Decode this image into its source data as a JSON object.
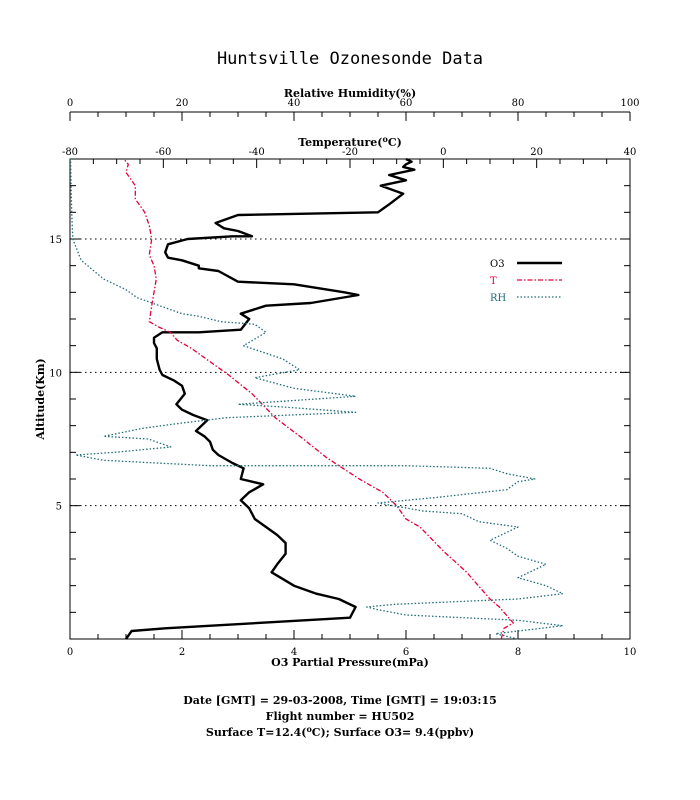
{
  "chart_data": {
    "type": "line",
    "title": "Huntsville Ozonesonde Data",
    "ylabel": "Altitude(Km)",
    "ylim": [
      0,
      18
    ],
    "yticks": [
      5,
      10,
      15
    ],
    "axes": {
      "o3": {
        "label": "O3 Partial Pressure(mPa)",
        "lim": [
          0,
          10
        ],
        "ticks": [
          0,
          2,
          4,
          6,
          8,
          10
        ]
      },
      "rh": {
        "label": "Relative Humidity(%)",
        "lim": [
          0,
          100
        ],
        "ticks": [
          0,
          20,
          40,
          60,
          80,
          100
        ]
      },
      "temp": {
        "label_pre": "Temperature(",
        "label_sup": "o",
        "label_post": "C)",
        "lim": [
          -80,
          40
        ],
        "ticks": [
          -80,
          -60,
          -40,
          -20,
          0,
          20,
          40
        ]
      }
    },
    "legend": {
      "placement": "right-middle",
      "entries": [
        "O3",
        "T",
        "RH"
      ]
    },
    "grid": "dotted at 5, 10, 15 km",
    "series": [
      {
        "name": "O3",
        "axis": "o3",
        "color": "#000000",
        "x": [
          1.0,
          1.1,
          1.7,
          5.0,
          5.1,
          4.8,
          4.4,
          4.0,
          3.6,
          3.7,
          3.85,
          3.85,
          3.7,
          3.5,
          3.3,
          3.2,
          3.05,
          3.2,
          3.45,
          3.05,
          3.1,
          2.9,
          2.65,
          2.55,
          2.5,
          2.4,
          2.25,
          2.45,
          2.2,
          2.0,
          1.9,
          2.05,
          2.0,
          1.85,
          1.65,
          1.6,
          1.55,
          1.55,
          1.5,
          1.5,
          1.65,
          2.3,
          3.05,
          3.2,
          3.05,
          3.5,
          4.3,
          5.15,
          4.9,
          4.0,
          3.0,
          2.65,
          2.3,
          2.3,
          2.0,
          1.75,
          1.7,
          1.75,
          2.1,
          2.9,
          3.25,
          3.0,
          2.75,
          2.6,
          3.0,
          5.5,
          5.7,
          5.95,
          5.55,
          6.0,
          5.7,
          6.15,
          5.95,
          6.0,
          6.1,
          6.0
        ],
        "y": [
          0.0,
          0.3,
          0.4,
          0.8,
          1.2,
          1.5,
          1.7,
          2.0,
          2.5,
          2.8,
          3.2,
          3.6,
          3.9,
          4.2,
          4.5,
          4.9,
          5.2,
          5.5,
          5.8,
          6.0,
          6.4,
          6.6,
          6.9,
          7.1,
          7.4,
          7.6,
          7.8,
          8.2,
          8.4,
          8.6,
          8.8,
          9.2,
          9.5,
          9.7,
          9.9,
          10.1,
          10.5,
          10.9,
          11.1,
          11.3,
          11.5,
          11.5,
          11.6,
          12.0,
          12.2,
          12.5,
          12.6,
          12.9,
          13.0,
          13.3,
          13.4,
          13.8,
          13.9,
          14.0,
          14.2,
          14.3,
          14.5,
          14.8,
          15.0,
          15.1,
          15.1,
          15.3,
          15.4,
          15.6,
          15.9,
          16.0,
          16.3,
          16.7,
          17.0,
          17.2,
          17.4,
          17.6,
          17.7,
          17.8,
          17.9,
          18.0
        ]
      },
      {
        "name": "T",
        "axis": "temp",
        "color": "#e4003a",
        "x": [
          12.4,
          13.0,
          15.0,
          13.5,
          12.0,
          10.0,
          5.0,
          0.0,
          -5.0,
          -8.0,
          -10.0,
          -13.0,
          -18.0,
          -25.0,
          -30.0,
          -36.0,
          -41.0,
          -46.0,
          -50.0,
          -54.0,
          -57.0,
          -58.5,
          -61.0,
          -63.0,
          -62.5,
          -62.0,
          -61.5,
          -62.0,
          -63.0,
          -62.5,
          -63.0,
          -64.0,
          -66.0,
          -66.0,
          -68.0,
          -67.5,
          -68.5
        ],
        "y": [
          0.0,
          0.4,
          0.6,
          0.9,
          1.2,
          1.5,
          2.5,
          3.3,
          4.2,
          4.5,
          5.0,
          5.5,
          6.0,
          6.8,
          7.5,
          8.3,
          9.2,
          9.9,
          10.4,
          10.9,
          11.2,
          11.5,
          11.7,
          11.9,
          12.5,
          13.0,
          13.5,
          14.0,
          14.4,
          15.0,
          15.5,
          16.0,
          16.5,
          17.0,
          17.5,
          17.8,
          18.0
        ]
      },
      {
        "name": "RH",
        "axis": "rh",
        "color": "#1f6d78",
        "x": [
          80.0,
          76.0,
          88.0,
          80.0,
          60.0,
          55.0,
          53.0,
          58.0,
          80.0,
          88.0,
          85.0,
          80.0,
          85.0,
          80.0,
          78.0,
          75.0,
          80.0,
          73.0,
          70.0,
          63.0,
          55.0,
          65.0,
          78.0,
          80.0,
          83.0,
          78.0,
          75.0,
          60.0,
          45.0,
          25.0,
          6.0,
          1.0,
          8.0,
          18.0,
          14.0,
          6.0,
          13.0,
          20.0,
          28.0,
          51.0,
          38.0,
          30.0,
          51.0,
          40.0,
          33.0,
          41.0,
          38.0,
          31.0,
          35.0,
          33.0,
          27.0,
          25.0,
          23.0,
          20.0,
          16.0,
          12.0,
          10.0,
          6.0,
          2.0,
          0.5,
          0.3,
          0.2,
          0.1
        ],
        "y": [
          0.0,
          0.2,
          0.5,
          0.7,
          0.9,
          1.1,
          1.2,
          1.3,
          1.5,
          1.7,
          2.0,
          2.3,
          2.8,
          3.1,
          3.4,
          3.7,
          4.2,
          4.4,
          4.7,
          4.8,
          5.1,
          5.3,
          5.6,
          5.9,
          6.0,
          6.2,
          6.4,
          6.5,
          6.5,
          6.5,
          6.7,
          6.9,
          7.0,
          7.2,
          7.5,
          7.6,
          7.9,
          8.1,
          8.3,
          8.5,
          8.7,
          8.8,
          9.1,
          9.4,
          9.8,
          10.1,
          10.5,
          11.0,
          11.5,
          11.8,
          11.9,
          12.0,
          12.1,
          12.2,
          12.5,
          12.8,
          13.1,
          13.5,
          14.2,
          15.0,
          16.0,
          17.0,
          18.0
        ]
      }
    ]
  },
  "footer": {
    "line1": "Date [GMT] = 29-03-2008,  Time [GMT] = 19:03:15",
    "line2": "Flight number = HU502",
    "line3_pre": "Surface T=12.4(",
    "line3_sup": "o",
    "line3_post": "C); Surface O3= 9.4(ppbv)"
  }
}
